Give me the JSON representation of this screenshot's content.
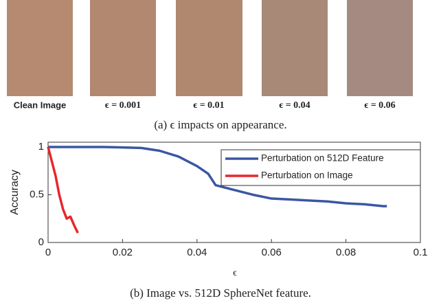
{
  "images": [
    {
      "label": "Clean Image"
    },
    {
      "label": "ϵ = 0.001"
    },
    {
      "label": "ϵ = 0.01"
    },
    {
      "label": "ϵ = 0.04"
    },
    {
      "label": "ϵ = 0.06"
    }
  ],
  "caption_a": "(a) ϵ impacts on appearance.",
  "chart_data": {
    "type": "line",
    "xlabel": "ϵ",
    "ylabel": "Accuracy",
    "xlim": [
      0,
      0.1
    ],
    "xticks": [
      0,
      0.02,
      0.04,
      0.06,
      0.08,
      0.1
    ],
    "ylim": [
      0,
      1.05
    ],
    "yticks": [
      0,
      0.5,
      1
    ],
    "legend": "upper right",
    "series": [
      {
        "name": "Perturbation on 512D Feature",
        "color": "#3a56a5",
        "x": [
          0,
          0.005,
          0.01,
          0.015,
          0.02,
          0.025,
          0.03,
          0.035,
          0.04,
          0.043,
          0.045,
          0.05,
          0.055,
          0.06,
          0.065,
          0.07,
          0.075,
          0.08,
          0.085,
          0.09,
          0.091
        ],
        "values": [
          1,
          1,
          1,
          1,
          0.995,
          0.99,
          0.96,
          0.9,
          0.8,
          0.72,
          0.6,
          0.55,
          0.5,
          0.46,
          0.45,
          0.44,
          0.43,
          0.41,
          0.4,
          0.38,
          0.38
        ]
      },
      {
        "name": "Perturbation on Image",
        "color": "#e8262b",
        "x": [
          0,
          0.001,
          0.002,
          0.003,
          0.004,
          0.005,
          0.006,
          0.007,
          0.008
        ],
        "values": [
          1,
          0.85,
          0.7,
          0.5,
          0.35,
          0.25,
          0.27,
          0.18,
          0.1
        ]
      }
    ]
  },
  "caption_b": "(b) Image vs. 512D SphereNet feature."
}
